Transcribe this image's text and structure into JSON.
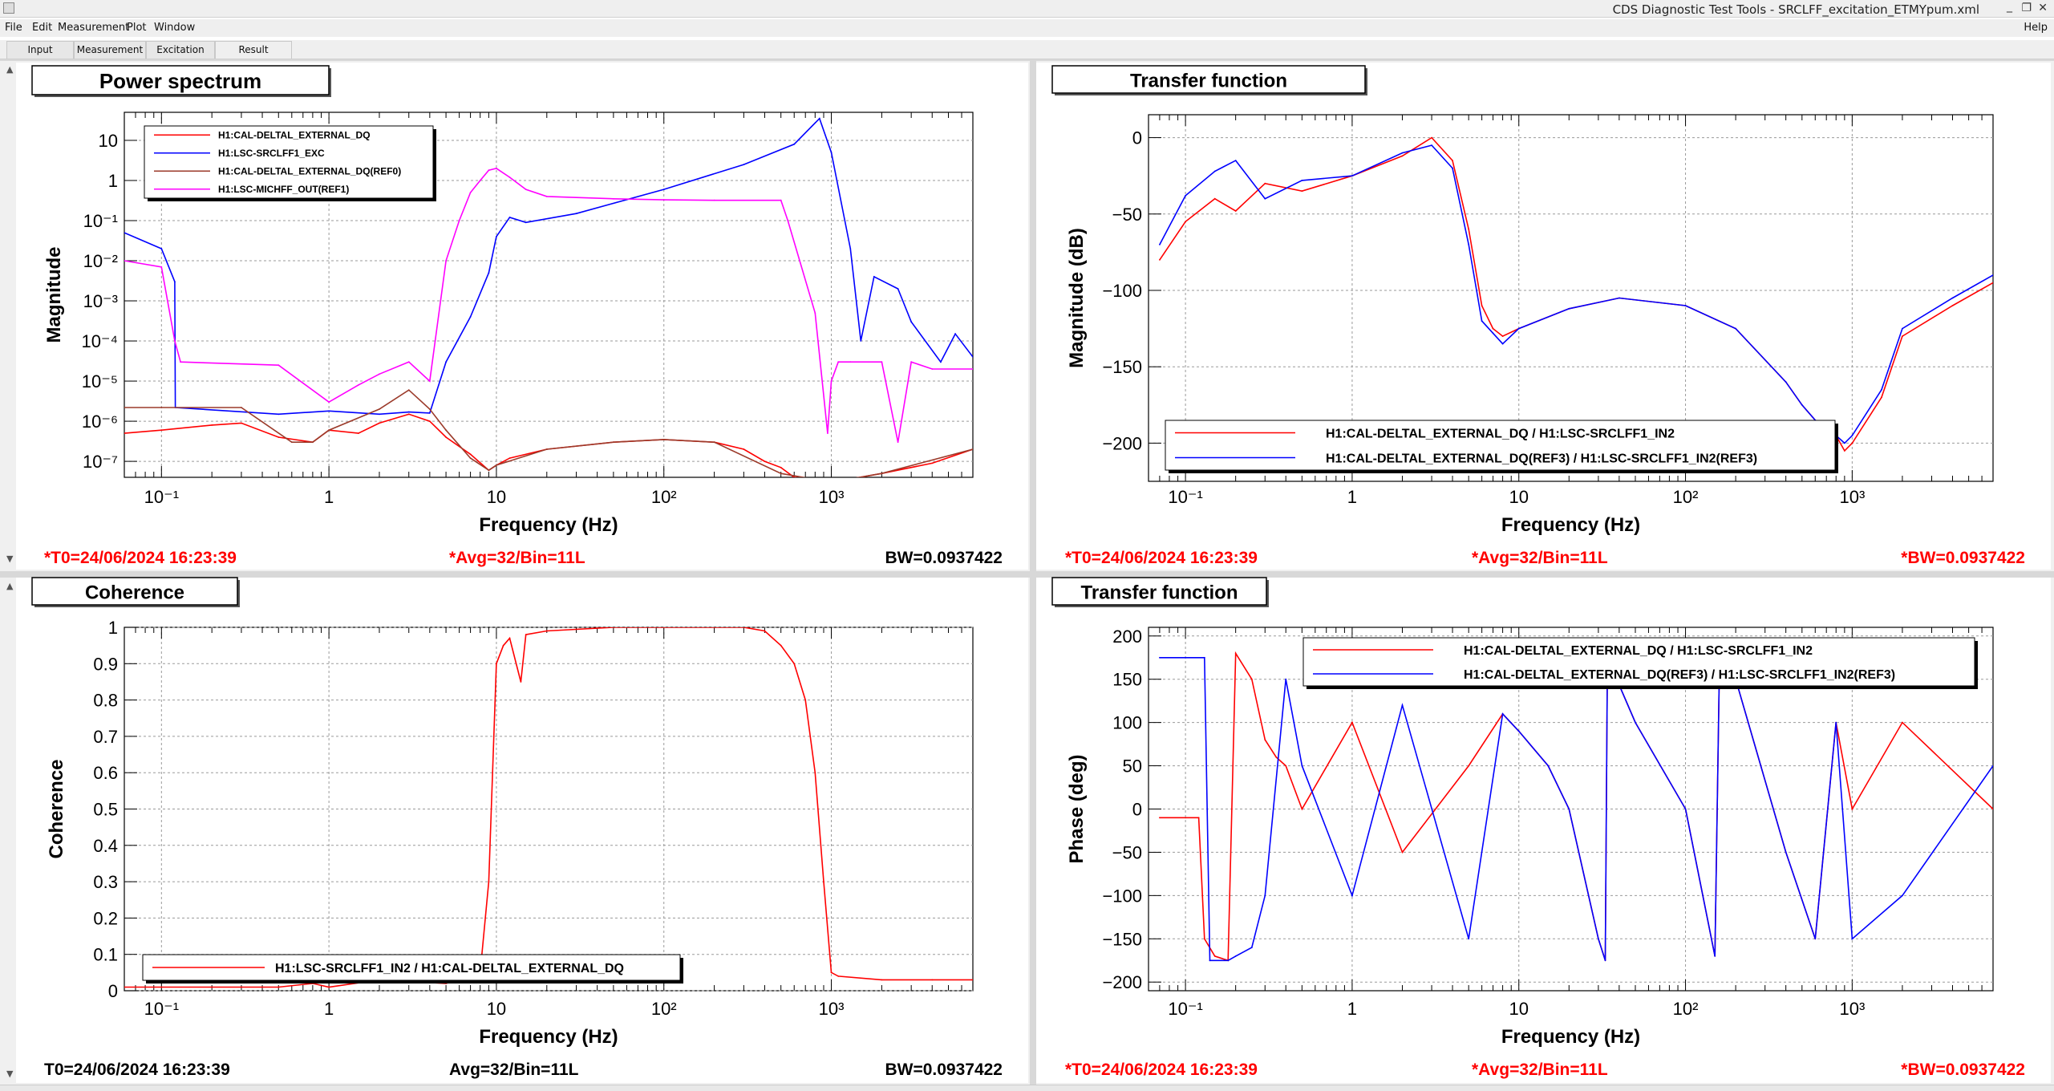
{
  "window": {
    "title": "CDS Diagnostic Test Tools - SRCLFF_excitation_ETMYpum.xml",
    "minimize": "_",
    "restore": "❐",
    "close": "✕"
  },
  "menu": [
    "File",
    "Edit",
    "Measurement",
    "Plot",
    "Window"
  ],
  "menu_help": "Help",
  "tabs": [
    "Input",
    "Measurement",
    "Excitation",
    "Result"
  ],
  "colors": {
    "red": "#ff0000",
    "blue": "#0000ff",
    "magenta": "#ff00ff",
    "dark_red": "#9b3a2a",
    "status_red": "#ff0000"
  },
  "panels": [
    {
      "title": "Power spectrum",
      "xlabel": "Frequency (Hz)",
      "ylabel": "Magnitude",
      "status": {
        "t0": "*T0=24/06/2024 16:23:39",
        "avg": "*Avg=32/Bin=11L",
        "bw": "BW=0.0937422"
      },
      "legend": [
        {
          "label": "H1:CAL-DELTAL_EXTERNAL_DQ",
          "color": "#ff0000"
        },
        {
          "label": "H1:LSC-SRCLFF1_EXC",
          "color": "#0000ff"
        },
        {
          "label": "H1:CAL-DELTAL_EXTERNAL_DQ(REF0)",
          "color": "#9b3a2a"
        },
        {
          "label": "H1:LSC-MICHFF_OUT(REF1)",
          "color": "#ff00ff"
        }
      ],
      "yticks": [
        "10",
        "1",
        "10⁻¹",
        "10⁻²",
        "10⁻³",
        "10⁻⁴",
        "10⁻⁵",
        "10⁻⁶",
        "10⁻⁷"
      ],
      "xticks": [
        "10⁻¹",
        "1",
        "10",
        "10²",
        "10³"
      ]
    },
    {
      "title": "Transfer function",
      "xlabel": "Frequency (Hz)",
      "ylabel": "Magnitude (dB)",
      "status": {
        "t0": "*T0=24/06/2024 16:23:39",
        "avg": "*Avg=32/Bin=11L",
        "bw": "*BW=0.0937422"
      },
      "legend": [
        {
          "label": "H1:CAL-DELTAL_EXTERNAL_DQ / H1:LSC-SRCLFF1_IN2",
          "color": "#ff0000"
        },
        {
          "label": "H1:CAL-DELTAL_EXTERNAL_DQ(REF3) / H1:LSC-SRCLFF1_IN2(REF3)",
          "color": "#0000ff"
        }
      ],
      "yticks": [
        "0",
        "−50",
        "−100",
        "−150",
        "−200"
      ],
      "xticks": [
        "10⁻¹",
        "1",
        "10",
        "10²",
        "10³"
      ]
    },
    {
      "title": "Coherence",
      "xlabel": "Frequency (Hz)",
      "ylabel": "Coherence",
      "status": {
        "t0": "T0=24/06/2024 16:23:39",
        "avg": "Avg=32/Bin=11L",
        "bw": "BW=0.0937422"
      },
      "legend": [
        {
          "label": "H1:LSC-SRCLFF1_IN2 / H1:CAL-DELTAL_EXTERNAL_DQ",
          "color": "#ff0000"
        }
      ],
      "yticks": [
        "1",
        "0.9",
        "0.8",
        "0.7",
        "0.6",
        "0.5",
        "0.4",
        "0.3",
        "0.2",
        "0.1",
        "0"
      ],
      "xticks": [
        "10⁻¹",
        "1",
        "10",
        "10²",
        "10³"
      ]
    },
    {
      "title": "Transfer function",
      "xlabel": "Frequency (Hz)",
      "ylabel": "Phase (deg)",
      "status": {
        "t0": "*T0=24/06/2024 16:23:39",
        "avg": "*Avg=32/Bin=11L",
        "bw": "*BW=0.0937422"
      },
      "legend": [
        {
          "label": "H1:CAL-DELTAL_EXTERNAL_DQ / H1:LSC-SRCLFF1_IN2",
          "color": "#ff0000"
        },
        {
          "label": "H1:CAL-DELTAL_EXTERNAL_DQ(REF3) / H1:LSC-SRCLFF1_IN2(REF3)",
          "color": "#0000ff"
        }
      ],
      "yticks": [
        "200",
        "150",
        "100",
        "50",
        "0",
        "−50",
        "−100",
        "−150",
        "−200"
      ],
      "xticks": [
        "10⁻¹",
        "1",
        "10",
        "10²",
        "10³"
      ]
    }
  ],
  "chart_data": [
    {
      "type": "line",
      "title": "Power spectrum",
      "xlabel": "Frequency (Hz)",
      "ylabel": "Magnitude",
      "xscale": "log",
      "yscale": "log",
      "xlim": [
        0.06,
        7000
      ],
      "ylim": [
        4e-08,
        50
      ],
      "grid": true,
      "legend_position": "top-left",
      "series": [
        {
          "name": "H1:CAL-DELTAL_EXTERNAL_DQ",
          "color": "#ff0000",
          "x": [
            0.06,
            0.1,
            0.2,
            0.3,
            0.5,
            0.8,
            1,
            1.5,
            2,
            3,
            4,
            5,
            7,
            9,
            10,
            12,
            20,
            50,
            100,
            200,
            300,
            400,
            500,
            600,
            1000,
            2000,
            4000,
            7000
          ],
          "y": [
            5e-07,
            6e-07,
            8e-07,
            9e-07,
            4e-07,
            3e-07,
            6e-07,
            5e-07,
            9e-07,
            1.5e-06,
            1e-06,
            4e-07,
            1.5e-07,
            6e-08,
            8e-08,
            1.2e-07,
            2e-07,
            3e-07,
            3.5e-07,
            3e-07,
            2e-07,
            1e-07,
            7e-08,
            4e-08,
            3e-08,
            5e-08,
            9e-08,
            2e-07
          ]
        },
        {
          "name": "H1:LSC-SRCLFF1_EXC",
          "color": "#0000ff",
          "x": [
            0.06,
            0.1,
            0.12,
            0.121,
            0.5,
            1,
            2,
            3,
            4,
            5,
            7,
            9,
            10,
            12,
            15,
            30,
            100,
            300,
            600,
            850,
            1000,
            1300,
            1500,
            1800,
            2500,
            3000,
            4500,
            5500,
            7000
          ],
          "y": [
            0.05,
            0.02,
            0.003,
            2.2e-06,
            1.5e-06,
            1.8e-06,
            1.5e-06,
            1.7e-06,
            1.6e-06,
            3e-05,
            0.0004,
            0.005,
            0.04,
            0.12,
            0.09,
            0.15,
            0.6,
            2.5,
            8,
            35,
            5,
            0.02,
            0.0001,
            0.004,
            0.002,
            0.0003,
            3e-05,
            0.00015,
            4e-05
          ]
        },
        {
          "name": "H1:CAL-DELTAL_EXTERNAL_DQ(REF0)",
          "color": "#9b3a2a",
          "x": [
            0.06,
            0.1,
            0.3,
            0.6,
            0.8,
            1,
            2,
            3,
            4,
            5,
            7,
            9,
            10,
            20,
            50,
            100,
            200,
            500,
            1000,
            2000,
            7000
          ],
          "y": [
            2.2e-06,
            2.2e-06,
            2.2e-06,
            3e-07,
            3e-07,
            6e-07,
            2e-06,
            6e-06,
            2e-06,
            6e-07,
            1.2e-07,
            6e-08,
            8e-08,
            2e-07,
            3e-07,
            3.5e-07,
            3e-07,
            5e-08,
            3e-08,
            5e-08,
            2e-07
          ]
        },
        {
          "name": "H1:LSC-MICHFF_OUT(REF1)",
          "color": "#ff00ff",
          "x": [
            0.06,
            0.1,
            0.12,
            0.13,
            0.5,
            1,
            1.5,
            2,
            3,
            4,
            5,
            6,
            7,
            8,
            9,
            10,
            12,
            15,
            20,
            50,
            100,
            200,
            500,
            550,
            800,
            950,
            1000,
            1100,
            1300,
            2000,
            2500,
            3000,
            4000,
            7000
          ],
          "y": [
            0.01,
            0.007,
            0.0001,
            3e-05,
            2.5e-05,
            3e-06,
            8e-06,
            1.5e-05,
            3e-05,
            1e-05,
            0.01,
            0.1,
            0.5,
            1,
            1.8,
            2,
            1.2,
            0.6,
            0.4,
            0.35,
            0.33,
            0.32,
            0.32,
            0.1,
            0.0005,
            5e-07,
            1e-05,
            3e-05,
            3e-05,
            3e-05,
            3e-07,
            3e-05,
            2e-05,
            2e-05
          ]
        }
      ]
    },
    {
      "type": "line",
      "title": "Transfer function",
      "xlabel": "Frequency (Hz)",
      "ylabel": "Magnitude (dB)",
      "xscale": "log",
      "xlim": [
        0.06,
        7000
      ],
      "ylim": [
        -225,
        15
      ],
      "grid": true,
      "legend_position": "bottom-center",
      "series": [
        {
          "name": "H1:CAL-DELTAL_EXTERNAL_DQ / H1:LSC-SRCLFF1_IN2",
          "color": "#ff0000",
          "x": [
            0.07,
            0.1,
            0.15,
            0.2,
            0.3,
            0.5,
            1,
            2,
            3,
            4,
            5,
            6,
            7,
            8,
            10,
            20,
            40,
            100,
            200,
            400,
            500,
            600,
            800,
            900,
            1000,
            1500,
            2000,
            4000,
            7000
          ],
          "y": [
            -80,
            -55,
            -40,
            -48,
            -30,
            -35,
            -25,
            -12,
            0,
            -15,
            -60,
            -110,
            -125,
            -130,
            -125,
            -112,
            -105,
            -110,
            -125,
            -160,
            -175,
            -185,
            -195,
            -205,
            -200,
            -170,
            -130,
            -110,
            -95
          ]
        },
        {
          "name": "H1:CAL-DELTAL_EXTERNAL_DQ(REF3) / H1:LSC-SRCLFF1_IN2(REF3)",
          "color": "#0000ff",
          "x": [
            0.07,
            0.1,
            0.15,
            0.2,
            0.3,
            0.5,
            1,
            2,
            3,
            4,
            5,
            6,
            7,
            8,
            10,
            20,
            40,
            100,
            200,
            400,
            500,
            600,
            800,
            900,
            1000,
            1500,
            2000,
            4000,
            7000
          ],
          "y": [
            -70,
            -38,
            -22,
            -15,
            -40,
            -28,
            -25,
            -10,
            -5,
            -20,
            -70,
            -120,
            -128,
            -135,
            -125,
            -112,
            -105,
            -110,
            -125,
            -160,
            -175,
            -185,
            -195,
            -200,
            -195,
            -165,
            -125,
            -105,
            -90
          ]
        }
      ]
    },
    {
      "type": "line",
      "title": "Coherence",
      "xlabel": "Frequency (Hz)",
      "ylabel": "Coherence",
      "xscale": "log",
      "xlim": [
        0.06,
        7000
      ],
      "ylim": [
        0,
        1
      ],
      "grid": true,
      "legend_position": "bottom-left",
      "series": [
        {
          "name": "H1:LSC-SRCLFF1_IN2 / H1:CAL-DELTAL_EXTERNAL_DQ",
          "color": "#ff0000",
          "x": [
            0.06,
            0.5,
            0.8,
            1,
            2,
            5,
            8,
            9,
            10,
            11,
            12,
            14,
            15,
            20,
            50,
            100,
            200,
            300,
            400,
            500,
            600,
            700,
            800,
            900,
            1000,
            1100,
            2000,
            4000,
            7000
          ],
          "y": [
            0.01,
            0.01,
            0.02,
            0.01,
            0.03,
            0.02,
            0.05,
            0.3,
            0.9,
            0.95,
            0.97,
            0.85,
            0.98,
            0.99,
            1,
            1,
            1,
            1,
            0.99,
            0.95,
            0.9,
            0.8,
            0.6,
            0.3,
            0.05,
            0.04,
            0.03,
            0.03,
            0.03
          ]
        }
      ]
    },
    {
      "type": "line",
      "title": "Transfer function",
      "xlabel": "Frequency (Hz)",
      "ylabel": "Phase (deg)",
      "xscale": "log",
      "xlim": [
        0.06,
        7000
      ],
      "ylim": [
        -210,
        210
      ],
      "grid": true,
      "legend_position": "top-right",
      "series": [
        {
          "name": "H1:CAL-DELTAL_EXTERNAL_DQ / H1:LSC-SRCLFF1_IN2",
          "color": "#ff0000",
          "x": [
            0.07,
            0.1,
            0.12,
            0.13,
            0.15,
            0.18,
            0.2,
            0.25,
            0.3,
            0.35,
            0.4,
            0.5,
            1,
            2,
            5,
            8,
            10,
            15,
            20,
            30,
            33,
            34,
            50,
            100,
            150,
            160,
            200,
            400,
            600,
            800,
            1000,
            2000,
            7000
          ],
          "y": [
            -10,
            -10,
            -10,
            -150,
            -170,
            -175,
            180,
            150,
            80,
            60,
            50,
            0,
            100,
            -50,
            50,
            110,
            90,
            50,
            0,
            -150,
            -175,
            175,
            100,
            0,
            -170,
            175,
            150,
            -50,
            -150,
            100,
            0,
            100,
            0
          ]
        },
        {
          "name": "H1:CAL-DELTAL_EXTERNAL_DQ(REF3) / H1:LSC-SRCLFF1_IN2(REF3)",
          "color": "#0000ff",
          "x": [
            0.07,
            0.1,
            0.13,
            0.14,
            0.18,
            0.2,
            0.25,
            0.3,
            0.4,
            0.5,
            1,
            2,
            5,
            8,
            10,
            15,
            20,
            30,
            33,
            34,
            50,
            100,
            150,
            160,
            200,
            400,
            600,
            800,
            1000,
            2000,
            7000
          ],
          "y": [
            175,
            175,
            175,
            -175,
            -175,
            -170,
            -160,
            -100,
            150,
            50,
            -100,
            120,
            -150,
            110,
            90,
            50,
            0,
            -150,
            -175,
            175,
            100,
            0,
            -170,
            175,
            150,
            -50,
            -150,
            100,
            -150,
            -100,
            50
          ]
        }
      ]
    }
  ]
}
